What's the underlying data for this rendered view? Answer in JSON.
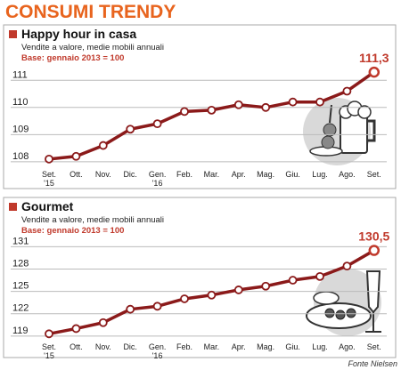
{
  "header": {
    "title": "CONSUMI TRENDY"
  },
  "footer": {
    "source": "Fonte Nielsen"
  },
  "chart_data": [
    {
      "type": "line",
      "title": "Happy hour in casa",
      "subtitle": "Vendite a valore, medie mobili annuali",
      "note": "Base: gennaio 2013 = 100",
      "categories": [
        "Set. '15",
        "Ott.",
        "Nov.",
        "Dic.",
        "Gen. '16",
        "Feb.",
        "Mar.",
        "Apr.",
        "Mag.",
        "Giu.",
        "Lug.",
        "Ago.",
        "Set."
      ],
      "values": [
        108.1,
        108.2,
        108.6,
        109.2,
        109.4,
        109.85,
        109.9,
        110.1,
        110.0,
        110.2,
        110.2,
        110.6,
        111.3
      ],
      "value_labels": [
        null,
        null,
        null,
        null,
        null,
        null,
        null,
        null,
        null,
        null,
        null,
        null,
        "111,3"
      ],
      "color": "#8b1a1a",
      "ylim": [
        107.8,
        111.5
      ],
      "yticks": [
        108,
        109,
        110,
        111
      ],
      "grid": true
    },
    {
      "type": "line",
      "title": "Gourmet",
      "subtitle": "Vendite a valore, medie mobili annuali",
      "note": "Base: gennaio 2013 = 100",
      "categories": [
        "Set. '15",
        "Ott.",
        "Nov.",
        "Dic.",
        "Gen. '16",
        "Feb.",
        "Mar.",
        "Apr.",
        "Mag.",
        "Giu.",
        "Lug.",
        "Ago.",
        "Set."
      ],
      "values": [
        119.3,
        120.0,
        120.8,
        122.6,
        123.0,
        124.0,
        124.5,
        125.2,
        125.7,
        126.5,
        127.0,
        128.4,
        130.5
      ],
      "value_labels": [
        null,
        null,
        null,
        null,
        null,
        null,
        null,
        null,
        null,
        null,
        null,
        null,
        "130,5"
      ],
      "color": "#8b1a1a",
      "ylim": [
        118.5,
        132
      ],
      "yticks": [
        119,
        122,
        125,
        128,
        131
      ],
      "grid": true
    }
  ]
}
